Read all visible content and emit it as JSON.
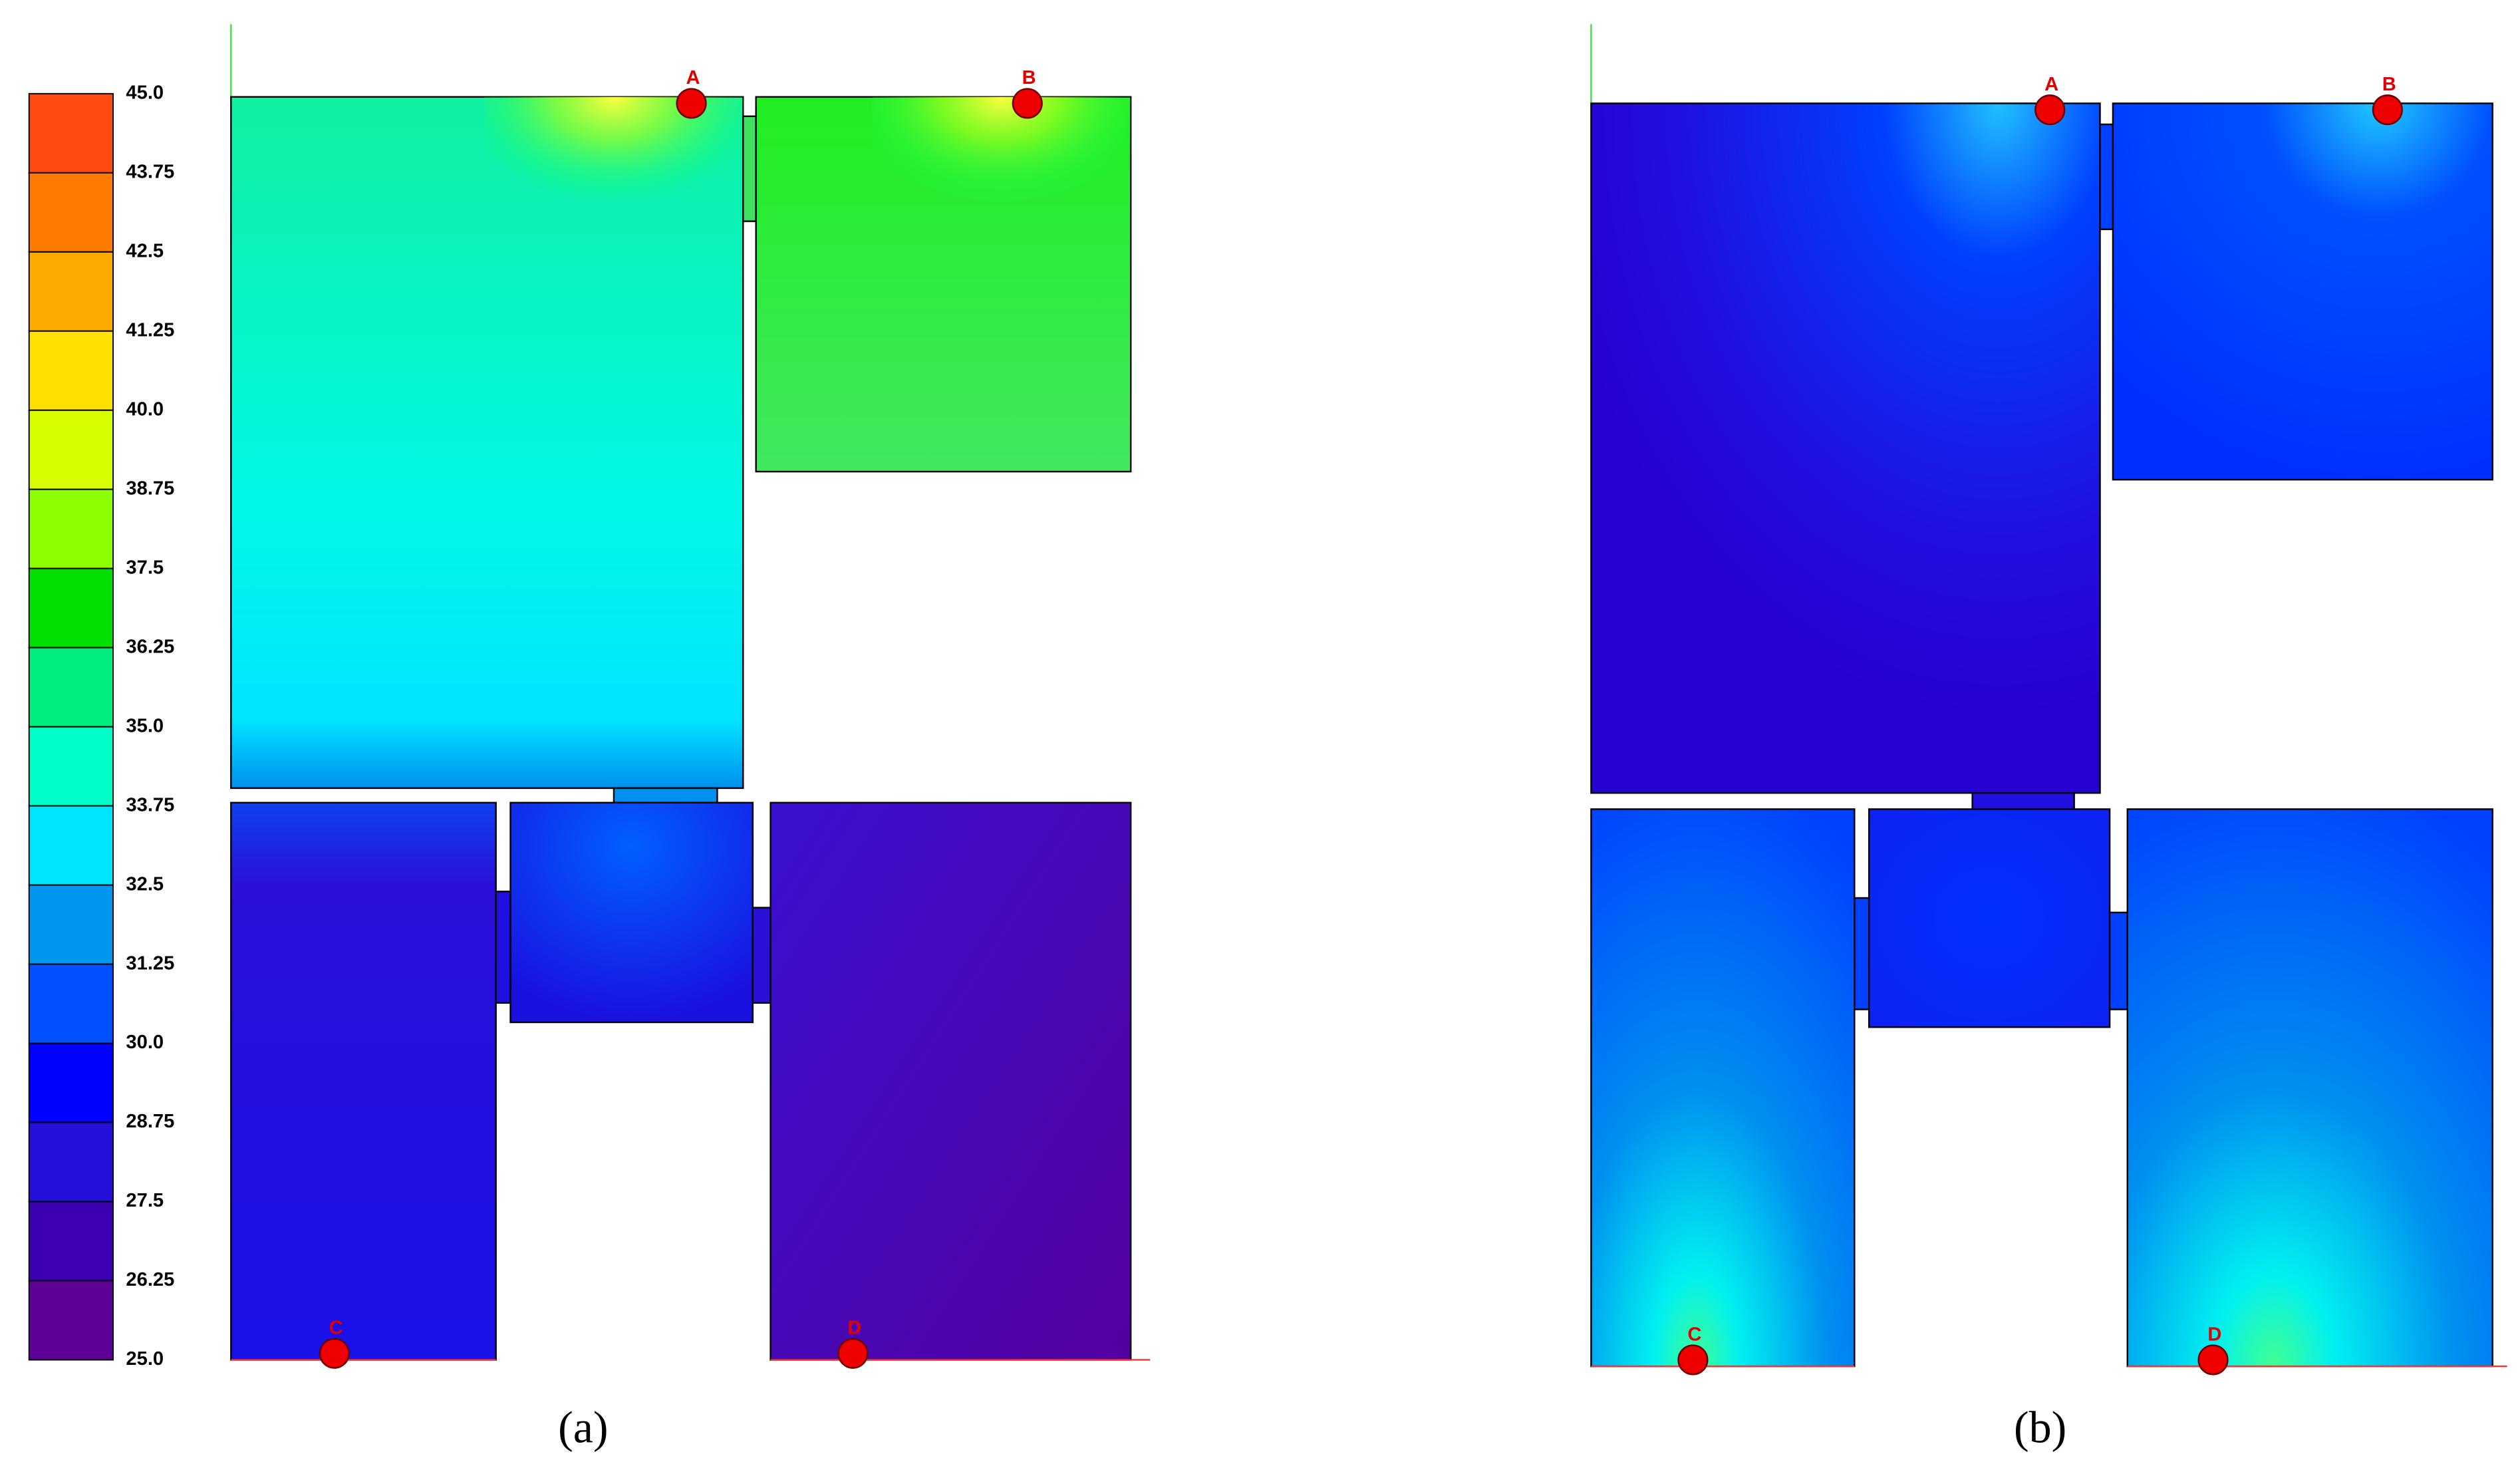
{
  "colorbar": {
    "ticks": [
      "45.0",
      "43.75",
      "42.5",
      "41.25",
      "40.0",
      "38.75",
      "37.5",
      "36.25",
      "35.0",
      "33.75",
      "32.5",
      "31.25",
      "30.0",
      "28.75",
      "27.5",
      "26.25",
      "25.0"
    ],
    "colors": [
      "#ff4a10",
      "#ff7a00",
      "#ffaa00",
      "#ffe000",
      "#d8ff00",
      "#8cff00",
      "#00e000",
      "#00ee80",
      "#00ffc8",
      "#00e4ff",
      "#0096f0",
      "#0050ff",
      "#0000ff",
      "#2410d8",
      "#3c00b0",
      "#5c0096"
    ]
  },
  "panels": [
    {
      "label": "(a)",
      "points": [
        "A",
        "B",
        "C",
        "D"
      ]
    },
    {
      "label": "(b)",
      "points": [
        "A",
        "B",
        "C",
        "D"
      ]
    }
  ]
}
